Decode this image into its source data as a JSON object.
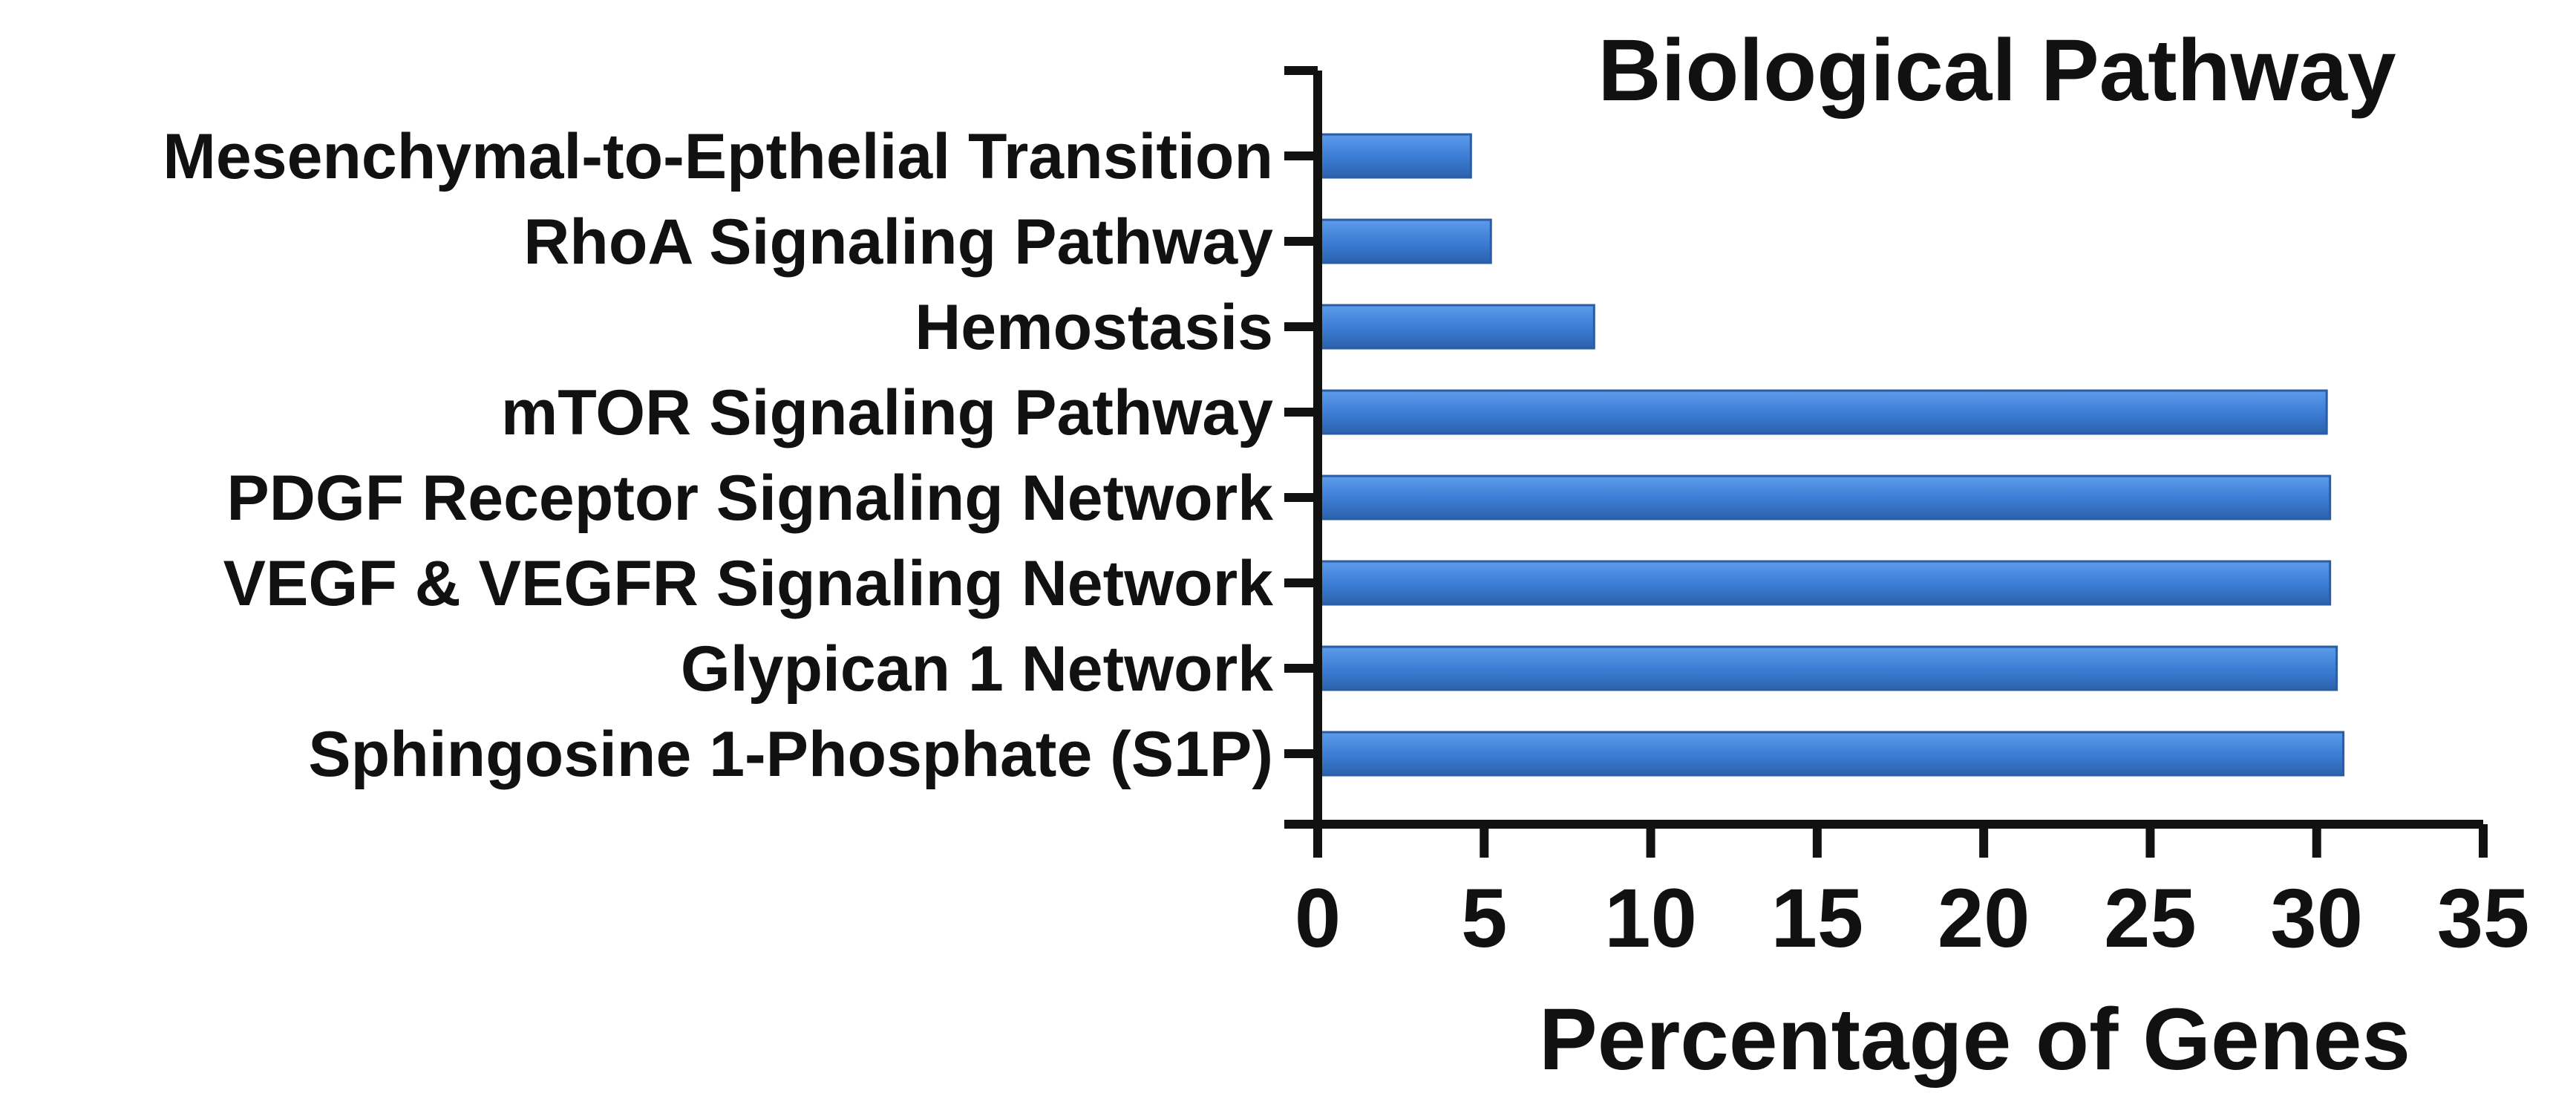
{
  "chart_data": {
    "type": "bar",
    "orientation": "horizontal",
    "title": "Biological Pathway",
    "xlabel": "Percentage of Genes",
    "ylabel": "",
    "xlim": [
      0,
      35
    ],
    "xticks": [
      "0",
      "5",
      "10",
      "15",
      "20",
      "25",
      "30",
      "35"
    ],
    "categories": [
      "Mesenchymal-to-Epthelial Transition",
      "RhoA Signaling Pathway",
      "Hemostasis",
      "mTOR Signaling Pathway",
      "PDGF Receptor Signaling Network",
      "VEGF & VEGFR Signaling Network",
      "Glypican 1 Network",
      "Sphingosine 1-Phosphate (S1P)"
    ],
    "values": [
      4.6,
      5.2,
      8.3,
      30.3,
      30.4,
      30.4,
      30.6,
      30.8
    ],
    "grid": false,
    "legend": "none",
    "bar_color": "#3d7fd6"
  }
}
